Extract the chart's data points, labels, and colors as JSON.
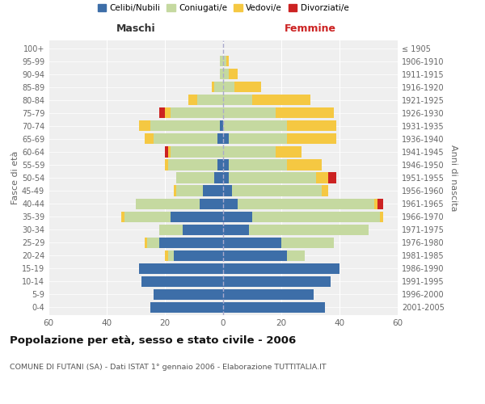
{
  "age_groups": [
    "0-4",
    "5-9",
    "10-14",
    "15-19",
    "20-24",
    "25-29",
    "30-34",
    "35-39",
    "40-44",
    "45-49",
    "50-54",
    "55-59",
    "60-64",
    "65-69",
    "70-74",
    "75-79",
    "80-84",
    "85-89",
    "90-94",
    "95-99",
    "100+"
  ],
  "birth_years": [
    "2001-2005",
    "1996-2000",
    "1991-1995",
    "1986-1990",
    "1981-1985",
    "1976-1980",
    "1971-1975",
    "1966-1970",
    "1961-1965",
    "1956-1960",
    "1951-1955",
    "1946-1950",
    "1941-1945",
    "1936-1940",
    "1931-1935",
    "1926-1930",
    "1921-1925",
    "1916-1920",
    "1911-1915",
    "1906-1910",
    "≤ 1905"
  ],
  "males": {
    "celibi": [
      25,
      24,
      28,
      29,
      17,
      22,
      14,
      18,
      8,
      7,
      3,
      2,
      0,
      2,
      1,
      0,
      0,
      0,
      0,
      0,
      0
    ],
    "coniugati": [
      0,
      0,
      0,
      0,
      2,
      4,
      8,
      16,
      22,
      9,
      13,
      17,
      18,
      22,
      24,
      18,
      9,
      3,
      1,
      1,
      0
    ],
    "vedovi": [
      0,
      0,
      0,
      0,
      1,
      1,
      0,
      1,
      0,
      1,
      0,
      1,
      1,
      3,
      4,
      2,
      3,
      1,
      0,
      0,
      0
    ],
    "divorziati": [
      0,
      0,
      0,
      0,
      0,
      0,
      0,
      0,
      0,
      0,
      0,
      0,
      1,
      0,
      0,
      2,
      0,
      0,
      0,
      0,
      0
    ]
  },
  "females": {
    "nubili": [
      35,
      31,
      37,
      40,
      22,
      20,
      9,
      10,
      5,
      3,
      2,
      2,
      0,
      2,
      0,
      0,
      0,
      0,
      0,
      0,
      0
    ],
    "coniugate": [
      0,
      0,
      0,
      0,
      6,
      18,
      41,
      44,
      47,
      31,
      30,
      20,
      18,
      20,
      22,
      18,
      10,
      4,
      2,
      1,
      0
    ],
    "vedove": [
      0,
      0,
      0,
      0,
      0,
      0,
      0,
      1,
      1,
      2,
      4,
      12,
      9,
      17,
      17,
      20,
      20,
      9,
      3,
      1,
      0
    ],
    "divorziate": [
      0,
      0,
      0,
      0,
      0,
      0,
      0,
      0,
      2,
      0,
      3,
      0,
      0,
      0,
      0,
      0,
      0,
      0,
      0,
      0,
      0
    ]
  },
  "colors": {
    "celibi": "#3d6ea8",
    "coniugati": "#c5d9a0",
    "vedovi": "#f5c842",
    "divorziati": "#cc2222"
  },
  "xlim": 60,
  "title": "Popolazione per età, sesso e stato civile - 2006",
  "subtitle": "COMUNE DI FUTANI (SA) - Dati ISTAT 1° gennaio 2006 - Elaborazione TUTTITALIA.IT",
  "xlabel_left": "Maschi",
  "xlabel_right": "Femmine",
  "ylabel_left": "Fasce di età",
  "ylabel_right": "Anni di nascita",
  "legend_labels": [
    "Celibi/Nubili",
    "Coniugati/e",
    "Vedovi/e",
    "Divorziati/e"
  ],
  "bg_color": "#ffffff",
  "plot_bg_color": "#efefef"
}
